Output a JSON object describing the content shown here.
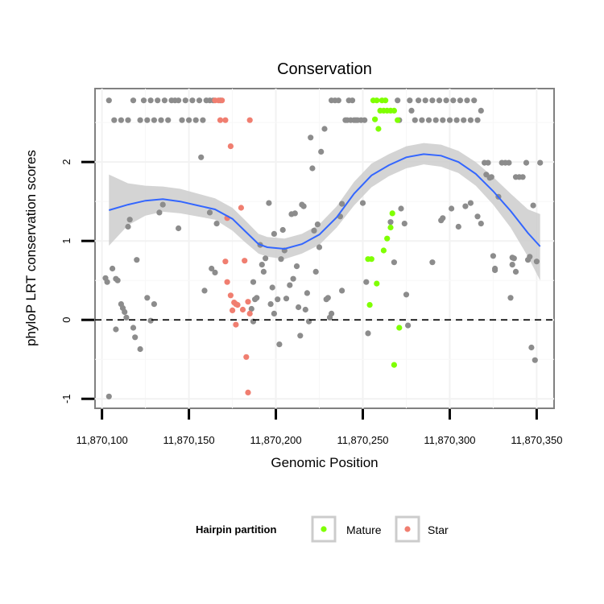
{
  "chart_data": {
    "type": "scatter",
    "title": "Conservation",
    "xlabel": "Genomic Position",
    "ylabel": "phyloP LRT conservation scores",
    "xlim": [
      11870096,
      11870360
    ],
    "ylim": [
      -1.12,
      2.93
    ],
    "x_ticks": [
      11870100,
      11870150,
      11870200,
      11870250,
      11870300,
      11870350
    ],
    "x_tick_labels": [
      "11,870,100",
      "11,870,150",
      "11,870,200",
      "11,870,250",
      "11,870,300",
      "11,870,350"
    ],
    "y_ticks": [
      -1,
      0,
      1,
      2
    ],
    "y_tick_labels": [
      "-1",
      "0",
      "1",
      "2"
    ],
    "reference_line": {
      "y": 0,
      "style": "dashed"
    },
    "legend": {
      "title": "Hairpin partition",
      "position": "bottom",
      "entries": [
        {
          "label": "Mature",
          "color": "#7fff00"
        },
        {
          "label": "Star",
          "color": "#f07e70"
        }
      ]
    },
    "colors": {
      "Other": "#8c8c8c",
      "Mature": "#7fff00",
      "Star": "#f07e70",
      "smooth": "#3366ff",
      "band": "#cccccc"
    },
    "series": [
      {
        "name": "Other",
        "points": [
          [
            11870104,
            2.78
          ],
          [
            11870107,
            2.53
          ],
          [
            11870111,
            2.53
          ],
          [
            11870115,
            2.53
          ],
          [
            11870118,
            2.78
          ],
          [
            11870122,
            2.53
          ],
          [
            11870124,
            2.78
          ],
          [
            11870126,
            2.53
          ],
          [
            11870128,
            2.78
          ],
          [
            11870130,
            2.53
          ],
          [
            11870132,
            2.78
          ],
          [
            11870134,
            2.53
          ],
          [
            11870136,
            2.78
          ],
          [
            11870138,
            2.53
          ],
          [
            11870140,
            2.78
          ],
          [
            11870142,
            2.78
          ],
          [
            11870144,
            2.78
          ],
          [
            11870146,
            2.53
          ],
          [
            11870148,
            2.78
          ],
          [
            11870150,
            2.53
          ],
          [
            11870152,
            2.78
          ],
          [
            11870154,
            2.53
          ],
          [
            11870156,
            2.78
          ],
          [
            11870158,
            2.53
          ],
          [
            11870160,
            2.78
          ],
          [
            11870162,
            2.78
          ],
          [
            11870164,
            2.78
          ],
          [
            11870168,
            2.78
          ],
          [
            11870104,
            -0.97
          ],
          [
            11870102,
            0.53
          ],
          [
            11870103,
            0.48
          ],
          [
            11870106,
            0.65
          ],
          [
            11870108,
            0.52
          ],
          [
            11870109,
            0.5
          ],
          [
            11870111,
            0.2
          ],
          [
            11870112,
            0.15
          ],
          [
            11870113,
            0.1
          ],
          [
            11870114,
            0.03
          ],
          [
            11870108,
            -0.12
          ],
          [
            11870115,
            1.18
          ],
          [
            11870116,
            1.27
          ],
          [
            11870118,
            -0.1
          ],
          [
            11870119,
            -0.22
          ],
          [
            11870120,
            0.76
          ],
          [
            11870122,
            -0.37
          ],
          [
            11870126,
            0.28
          ],
          [
            11870128,
            -0.01
          ],
          [
            11870130,
            0.2
          ],
          [
            11870133,
            1.36
          ],
          [
            11870135,
            1.46
          ],
          [
            11870144,
            1.16
          ],
          [
            11870157,
            2.06
          ],
          [
            11870159,
            0.37
          ],
          [
            11870162,
            1.36
          ],
          [
            11870163,
            0.65
          ],
          [
            11870165,
            0.6
          ],
          [
            11870166,
            1.22
          ],
          [
            11870187,
            0.48
          ],
          [
            11870188,
            0.26
          ],
          [
            11870189,
            0.28
          ],
          [
            11870186,
            0.14
          ],
          [
            11870187,
            -0.02
          ],
          [
            11870191,
            0.95
          ],
          [
            11870192,
            0.7
          ],
          [
            11870193,
            0.61
          ],
          [
            11870194,
            0.78
          ],
          [
            11870196,
            1.48
          ],
          [
            11870198,
            0.41
          ],
          [
            11870199,
            1.09
          ],
          [
            11870197,
            0.2
          ],
          [
            11870199,
            0.08
          ],
          [
            11870201,
            0.26
          ],
          [
            11870202,
            -0.31
          ],
          [
            11870203,
            0.77
          ],
          [
            11870204,
            1.14
          ],
          [
            11870205,
            0.88
          ],
          [
            11870206,
            0.27
          ],
          [
            11870208,
            0.44
          ],
          [
            11870209,
            1.34
          ],
          [
            11870210,
            0.52
          ],
          [
            11870211,
            1.35
          ],
          [
            11870212,
            0.68
          ],
          [
            11870213,
            0.16
          ],
          [
            11870214,
            -0.2
          ],
          [
            11870215,
            1.46
          ],
          [
            11870216,
            1.44
          ],
          [
            11870217,
            0.13
          ],
          [
            11870218,
            0.34
          ],
          [
            11870219,
            -0.02
          ],
          [
            11870220,
            2.31
          ],
          [
            11870221,
            1.92
          ],
          [
            11870222,
            1.13
          ],
          [
            11870223,
            0.61
          ],
          [
            11870224,
            1.21
          ],
          [
            11870225,
            0.92
          ],
          [
            11870226,
            2.13
          ],
          [
            11870228,
            2.42
          ],
          [
            11870229,
            0.26
          ],
          [
            11870230,
            0.28
          ],
          [
            11870231,
            0.03
          ],
          [
            11870232,
            0.08
          ],
          [
            11870232,
            2.78
          ],
          [
            11870234,
            2.78
          ],
          [
            11870236,
            2.78
          ],
          [
            11870237,
            1.31
          ],
          [
            11870238,
            1.47
          ],
          [
            11870238,
            0.37
          ],
          [
            11870240,
            2.53
          ],
          [
            11870241,
            2.53
          ],
          [
            11870242,
            2.78
          ],
          [
            11870243,
            2.53
          ],
          [
            11870244,
            2.78
          ],
          [
            11870245,
            2.53
          ],
          [
            11870246,
            2.53
          ],
          [
            11870247,
            2.53
          ],
          [
            11870249,
            2.53
          ],
          [
            11870251,
            2.53
          ],
          [
            11870252,
            0.48
          ],
          [
            11870253,
            -0.17
          ],
          [
            11870250,
            1.48
          ],
          [
            11870266,
            1.24
          ],
          [
            11870268,
            0.73
          ],
          [
            11870270,
            2.78
          ],
          [
            11870271,
            2.53
          ],
          [
            11870272,
            1.41
          ],
          [
            11870274,
            1.22
          ],
          [
            11870275,
            0.32
          ],
          [
            11870276,
            -0.07
          ],
          [
            11870277,
            2.78
          ],
          [
            11870278,
            2.65
          ],
          [
            11870280,
            2.53
          ],
          [
            11870282,
            2.78
          ],
          [
            11870284,
            2.53
          ],
          [
            11870286,
            2.78
          ],
          [
            11870288,
            2.53
          ],
          [
            11870290,
            2.78
          ],
          [
            11870292,
            2.53
          ],
          [
            11870294,
            2.78
          ],
          [
            11870296,
            2.53
          ],
          [
            11870298,
            2.78
          ],
          [
            11870300,
            2.53
          ],
          [
            11870302,
            2.78
          ],
          [
            11870304,
            2.53
          ],
          [
            11870306,
            2.78
          ],
          [
            11870308,
            2.53
          ],
          [
            11870310,
            2.78
          ],
          [
            11870312,
            2.53
          ],
          [
            11870314,
            2.78
          ],
          [
            11870316,
            2.53
          ],
          [
            11870318,
            2.65
          ],
          [
            11870290,
            0.73
          ],
          [
            11870295,
            1.26
          ],
          [
            11870296,
            1.29
          ],
          [
            11870301,
            1.41
          ],
          [
            11870305,
            1.18
          ],
          [
            11870309,
            1.44
          ],
          [
            11870312,
            1.48
          ],
          [
            11870316,
            1.31
          ],
          [
            11870318,
            1.22
          ],
          [
            11870320,
            1.99
          ],
          [
            11870321,
            1.84
          ],
          [
            11870322,
            1.99
          ],
          [
            11870323,
            1.8
          ],
          [
            11870324,
            1.81
          ],
          [
            11870325,
            0.81
          ],
          [
            11870326,
            0.65
          ],
          [
            11870326,
            0.63
          ],
          [
            11870328,
            1.56
          ],
          [
            11870330,
            1.99
          ],
          [
            11870332,
            1.99
          ],
          [
            11870334,
            1.99
          ],
          [
            11870335,
            0.28
          ],
          [
            11870336,
            0.7
          ],
          [
            11870336,
            0.79
          ],
          [
            11870337,
            0.78
          ],
          [
            11870338,
            0.61
          ],
          [
            11870338,
            1.81
          ],
          [
            11870340,
            1.81
          ],
          [
            11870342,
            1.81
          ],
          [
            11870344,
            1.99
          ],
          [
            11870345,
            0.76
          ],
          [
            11870346,
            0.8
          ],
          [
            11870347,
            -0.35
          ],
          [
            11870348,
            1.45
          ],
          [
            11870349,
            -0.51
          ],
          [
            11870350,
            0.74
          ],
          [
            11870352,
            1.99
          ]
        ]
      },
      {
        "name": "Mature",
        "points": [
          [
            11870253,
            0.77
          ],
          [
            11870255,
            0.77
          ],
          [
            11870254,
            0.19
          ],
          [
            11870257,
            2.54
          ],
          [
            11870258,
            2.78
          ],
          [
            11870256,
            2.78
          ],
          [
            11870258,
            0.46
          ],
          [
            11870259,
            2.42
          ],
          [
            11870260,
            2.65
          ],
          [
            11870262,
            2.65
          ],
          [
            11870264,
            2.65
          ],
          [
            11870266,
            2.65
          ],
          [
            11870268,
            2.65
          ],
          [
            11870261,
            2.78
          ],
          [
            11870263,
            2.78
          ],
          [
            11870262,
            0.88
          ],
          [
            11870264,
            1.03
          ],
          [
            11870266,
            1.17
          ],
          [
            11870267,
            1.35
          ],
          [
            11870270,
            2.53
          ],
          [
            11870268,
            -0.57
          ],
          [
            11870271,
            -0.1
          ]
        ]
      },
      {
        "name": "Star",
        "points": [
          [
            11870165,
            2.78
          ],
          [
            11870167,
            2.78
          ],
          [
            11870169,
            2.78
          ],
          [
            11870171,
            2.53
          ],
          [
            11870168,
            2.53
          ],
          [
            11870174,
            2.2
          ],
          [
            11870172,
            1.29
          ],
          [
            11870171,
            0.74
          ],
          [
            11870172,
            0.48
          ],
          [
            11870174,
            0.31
          ],
          [
            11870175,
            0.12
          ],
          [
            11870176,
            0.22
          ],
          [
            11870177,
            -0.06
          ],
          [
            11870177,
            0.2
          ],
          [
            11870178,
            0.19
          ],
          [
            11870180,
            1.42
          ],
          [
            11870181,
            0.13
          ],
          [
            11870182,
            0.75
          ],
          [
            11870183,
            -0.47
          ],
          [
            11870184,
            0.23
          ],
          [
            11870185,
            0.08
          ],
          [
            11870184,
            -0.92
          ],
          [
            11870185,
            2.53
          ]
        ]
      }
    ],
    "smooth": {
      "x": [
        11870104,
        11870115,
        11870125,
        11870135,
        11870145,
        11870155,
        11870165,
        11870175,
        11870182,
        11870190,
        11870195,
        11870205,
        11870215,
        11870225,
        11870235,
        11870245,
        11870255,
        11870265,
        11870275,
        11870285,
        11870295,
        11870305,
        11870315,
        11870325,
        11870335,
        11870345,
        11870352
      ],
      "y": [
        1.39,
        1.46,
        1.51,
        1.53,
        1.5,
        1.45,
        1.4,
        1.28,
        1.13,
        0.96,
        0.92,
        0.9,
        0.96,
        1.08,
        1.3,
        1.6,
        1.83,
        1.96,
        2.06,
        2.1,
        2.08,
        2.0,
        1.85,
        1.63,
        1.38,
        1.1,
        0.93
      ],
      "lower": [
        0.94,
        1.2,
        1.32,
        1.37,
        1.35,
        1.31,
        1.27,
        1.13,
        0.99,
        0.84,
        0.8,
        0.77,
        0.84,
        0.95,
        1.17,
        1.45,
        1.68,
        1.82,
        1.92,
        1.97,
        1.94,
        1.86,
        1.7,
        1.46,
        1.17,
        0.8,
        0.5
      ],
      "upper": [
        1.84,
        1.73,
        1.7,
        1.69,
        1.66,
        1.6,
        1.54,
        1.42,
        1.27,
        1.09,
        1.05,
        1.03,
        1.09,
        1.21,
        1.44,
        1.75,
        1.98,
        2.1,
        2.2,
        2.24,
        2.22,
        2.14,
        2.0,
        1.81,
        1.6,
        1.4,
        1.34
      ]
    }
  }
}
